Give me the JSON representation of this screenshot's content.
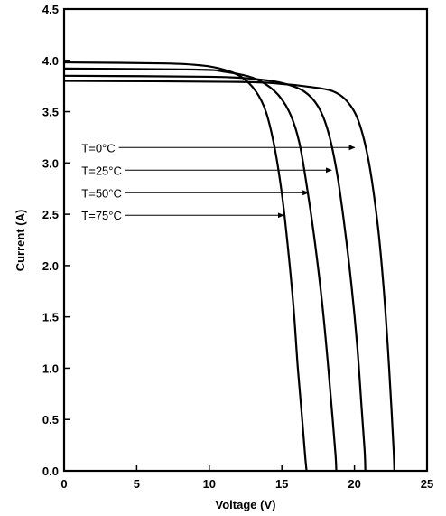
{
  "chart_data": {
    "type": "line",
    "title": "",
    "xlabel": "Voltage (V)",
    "ylabel": "Current (A)",
    "xlim": [
      0,
      25
    ],
    "ylim": [
      0,
      4.5
    ],
    "x_ticks": [
      "0",
      "5",
      "10",
      "15",
      "20",
      "25"
    ],
    "y_ticks": [
      "0.0",
      "0.5",
      "1.0",
      "1.5",
      "2.0",
      "2.5",
      "3.0",
      "3.5",
      "4.0",
      "4.5"
    ],
    "grid": false,
    "series": [
      {
        "name": "T=0°C",
        "points": [
          [
            0,
            3.8
          ],
          [
            12,
            3.79
          ],
          [
            15,
            3.77
          ],
          [
            17,
            3.74
          ],
          [
            18.5,
            3.7
          ],
          [
            19.5,
            3.6
          ],
          [
            20.3,
            3.4
          ],
          [
            21.0,
            3.0
          ],
          [
            21.6,
            2.4
          ],
          [
            22.0,
            1.8
          ],
          [
            22.3,
            1.2
          ],
          [
            22.55,
            0.6
          ],
          [
            22.7,
            0.2
          ],
          [
            22.75,
            0.0
          ]
        ]
      },
      {
        "name": "T=25°C",
        "points": [
          [
            0,
            3.85
          ],
          [
            10,
            3.84
          ],
          [
            13,
            3.82
          ],
          [
            15,
            3.78
          ],
          [
            16.5,
            3.7
          ],
          [
            17.5,
            3.55
          ],
          [
            18.2,
            3.3
          ],
          [
            18.8,
            2.9
          ],
          [
            19.3,
            2.4
          ],
          [
            19.8,
            1.8
          ],
          [
            20.2,
            1.2
          ],
          [
            20.5,
            0.6
          ],
          [
            20.7,
            0.2
          ],
          [
            20.75,
            0.0
          ]
        ]
      },
      {
        "name": "T=50°C",
        "points": [
          [
            0,
            3.92
          ],
          [
            9,
            3.91
          ],
          [
            11,
            3.89
          ],
          [
            13,
            3.83
          ],
          [
            14.5,
            3.7
          ],
          [
            15.5,
            3.5
          ],
          [
            16.2,
            3.2
          ],
          [
            16.8,
            2.7
          ],
          [
            17.3,
            2.2
          ],
          [
            17.8,
            1.6
          ],
          [
            18.2,
            1.0
          ],
          [
            18.5,
            0.5
          ],
          [
            18.7,
            0.15
          ],
          [
            18.75,
            0.0
          ]
        ]
      },
      {
        "name": "T=75°C",
        "points": [
          [
            0,
            3.98
          ],
          [
            7,
            3.97
          ],
          [
            9.5,
            3.95
          ],
          [
            11,
            3.91
          ],
          [
            12.2,
            3.84
          ],
          [
            13.2,
            3.7
          ],
          [
            13.9,
            3.5
          ],
          [
            14.5,
            3.15
          ],
          [
            15.0,
            2.7
          ],
          [
            15.4,
            2.2
          ],
          [
            15.8,
            1.6
          ],
          [
            16.1,
            1.0
          ],
          [
            16.4,
            0.5
          ],
          [
            16.6,
            0.15
          ],
          [
            16.7,
            0.0
          ]
        ]
      }
    ],
    "annotations": [
      {
        "text": "T=0°C",
        "label_at": [
          1.2,
          3.15
        ],
        "arrow_to": [
          20.0,
          3.15
        ]
      },
      {
        "text": "T=25°C",
        "label_at": [
          1.2,
          2.93
        ],
        "arrow_to": [
          18.4,
          2.93
        ]
      },
      {
        "text": "T=50°C",
        "label_at": [
          1.2,
          2.71
        ],
        "arrow_to": [
          16.8,
          2.71
        ]
      },
      {
        "text": "T=75°C",
        "label_at": [
          1.2,
          2.49
        ],
        "arrow_to": [
          15.1,
          2.49
        ]
      }
    ]
  }
}
